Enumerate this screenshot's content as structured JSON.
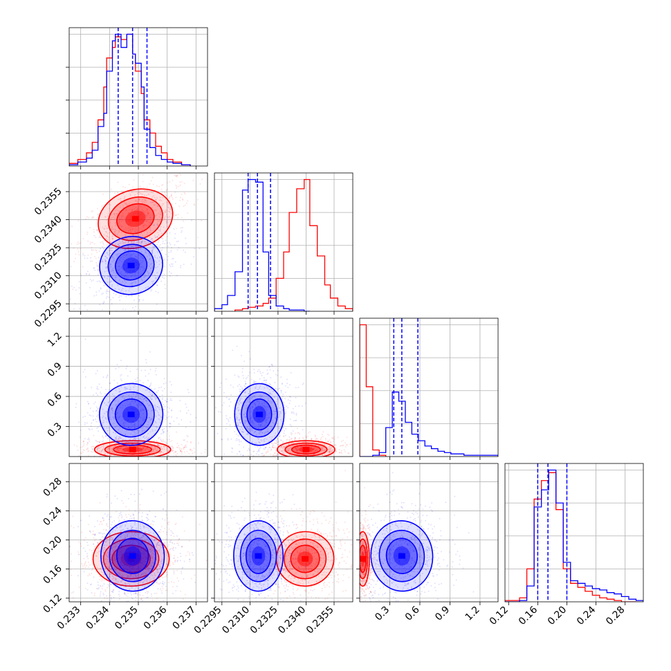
{
  "colors": {
    "series_a": "#ff0000",
    "series_b": "#0000ff",
    "grid": "#b0b0b0"
  },
  "chart_data": [
    {
      "type": "histogram",
      "param_index": 0,
      "xlim": [
        0.2326,
        0.2374
      ],
      "x_ticks": [
        "0.233",
        "0.234",
        "0.235",
        "0.236",
        "0.237"
      ],
      "quantile_lines": [
        0.2343,
        0.2348,
        0.2353
      ],
      "series": [
        {
          "color": "red",
          "bin_edges": [
            0.2326,
            0.2329,
            0.2332,
            0.2334,
            0.2336,
            0.2338,
            0.2339,
            0.2341,
            0.2342,
            0.2344,
            0.2346,
            0.2348,
            0.2349,
            0.2351,
            0.2352,
            0.2354,
            0.2356,
            0.2358,
            0.236,
            0.2362,
            0.2365,
            0.2368
          ],
          "values": [
            0.02,
            0.05,
            0.1,
            0.18,
            0.35,
            0.6,
            0.82,
            0.9,
            0.98,
            0.96,
            1.0,
            0.85,
            0.72,
            0.55,
            0.35,
            0.25,
            0.15,
            0.1,
            0.05,
            0.03,
            0.01
          ]
        },
        {
          "color": "blue",
          "bin_edges": [
            0.2326,
            0.2329,
            0.2332,
            0.2334,
            0.2336,
            0.2338,
            0.2339,
            0.2341,
            0.2342,
            0.2344,
            0.2346,
            0.2348,
            0.2349,
            0.2351,
            0.2352,
            0.2354,
            0.2356,
            0.2358,
            0.236,
            0.2362,
            0.2365,
            0.2368
          ],
          "values": [
            0.01,
            0.03,
            0.06,
            0.12,
            0.3,
            0.4,
            0.72,
            0.95,
            1.0,
            0.9,
            1.0,
            0.85,
            0.78,
            0.6,
            0.28,
            0.14,
            0.08,
            0.05,
            0.03,
            0.02,
            0.01
          ]
        }
      ]
    },
    {
      "type": "histogram",
      "param_index": 1,
      "xlim": [
        0.2291,
        0.2365
      ],
      "x_ticks": [
        "0.2295",
        "0.2310",
        "0.2325",
        "0.2340",
        "0.2355"
      ],
      "quantile_lines": [
        0.2309,
        0.2314,
        0.2321
      ],
      "series": [
        {
          "color": "red",
          "bin_edges": [
            0.2302,
            0.2306,
            0.2309,
            0.2313,
            0.2317,
            0.232,
            0.2324,
            0.2328,
            0.2331,
            0.2335,
            0.2339,
            0.2342,
            0.2346,
            0.235,
            0.2353,
            0.2357,
            0.2361,
            0.2365
          ],
          "values": [
            0.01,
            0.02,
            0.03,
            0.04,
            0.06,
            0.1,
            0.25,
            0.45,
            0.75,
            0.93,
            1.0,
            0.65,
            0.42,
            0.2,
            0.1,
            0.04,
            0.02
          ]
        },
        {
          "color": "blue",
          "bin_edges": [
            0.2291,
            0.2295,
            0.2298,
            0.2302,
            0.2306,
            0.2309,
            0.2313,
            0.2317,
            0.232,
            0.2324,
            0.2328,
            0.2331,
            0.2335,
            0.2339,
            0.2342
          ],
          "values": [
            0.02,
            0.05,
            0.12,
            0.3,
            0.92,
            1.0,
            0.98,
            0.45,
            0.12,
            0.04,
            0.02,
            0.01,
            0.01,
            0.0
          ]
        }
      ]
    },
    {
      "type": "histogram",
      "param_index": 2,
      "xlim": [
        0.0,
        1.38
      ],
      "x_ticks": [
        "0.3",
        "0.6",
        "0.9",
        "1.2"
      ],
      "quantile_lines": [
        0.34,
        0.42,
        0.58
      ],
      "series": [
        {
          "color": "red",
          "bin_edges": [
            0.0,
            0.065,
            0.13,
            0.195,
            0.26
          ],
          "values": [
            1.0,
            0.53,
            0.05,
            0.01
          ]
        },
        {
          "color": "blue",
          "bin_edges": [
            0.0,
            0.065,
            0.13,
            0.195,
            0.26,
            0.325,
            0.39,
            0.455,
            0.52,
            0.585,
            0.65,
            0.715,
            0.78,
            0.845,
            0.91,
            1.04,
            1.17,
            1.38
          ],
          "values": [
            0.0,
            0.0,
            0.01,
            0.03,
            0.22,
            0.49,
            0.42,
            0.26,
            0.17,
            0.12,
            0.08,
            0.06,
            0.04,
            0.03,
            0.02,
            0.01,
            0.01
          ]
        }
      ]
    },
    {
      "type": "histogram",
      "param_index": 3,
      "xlim": [
        0.115,
        0.305
      ],
      "x_ticks": [
        "0.12",
        "0.16",
        "0.20",
        "0.24",
        "0.28"
      ],
      "quantile_lines": [
        0.16,
        0.174,
        0.2
      ],
      "series": [
        {
          "color": "red",
          "bin_edges": [
            0.115,
            0.135,
            0.145,
            0.155,
            0.165,
            0.175,
            0.185,
            0.195,
            0.205,
            0.215,
            0.225,
            0.235,
            0.245,
            0.255,
            0.265,
            0.275,
            0.285,
            0.295
          ],
          "values": [
            0.01,
            0.03,
            0.25,
            0.78,
            0.92,
            0.98,
            0.7,
            0.25,
            0.14,
            0.11,
            0.08,
            0.05,
            0.03,
            0.02,
            0.01,
            0.0,
            0.0
          ]
        },
        {
          "color": "blue",
          "bin_edges": [
            0.115,
            0.135,
            0.145,
            0.155,
            0.165,
            0.175,
            0.185,
            0.195,
            0.205,
            0.215,
            0.225,
            0.235,
            0.245,
            0.255,
            0.265,
            0.275,
            0.285,
            0.295,
            0.305
          ],
          "values": [
            0.0,
            0.01,
            0.12,
            0.72,
            0.85,
            1.0,
            0.75,
            0.3,
            0.16,
            0.14,
            0.12,
            0.1,
            0.09,
            0.07,
            0.06,
            0.04,
            0.02,
            0.01
          ]
        }
      ]
    },
    {
      "type": "scatter_contour",
      "x_param": 0,
      "y_param": 1,
      "xlim": [
        0.2326,
        0.2374
      ],
      "ylim": [
        0.2291,
        0.2365
      ],
      "y_ticks": [
        "0.2295",
        "0.2310",
        "0.2325",
        "0.2340",
        "0.2355"
      ],
      "series": [
        {
          "color": "red",
          "center": [
            0.2349,
            0.23405
          ],
          "sd": [
            0.0006,
            0.0007
          ],
          "rho": 0.55
        },
        {
          "color": "blue",
          "center": [
            0.23475,
            0.23155
          ],
          "sd": [
            0.0005,
            0.0007
          ],
          "rho": 0.4
        }
      ]
    },
    {
      "type": "scatter_contour",
      "x_param": 0,
      "y_param": 2,
      "xlim": [
        0.2326,
        0.2374
      ],
      "ylim": [
        0.0,
        1.38
      ],
      "y_ticks": [
        "0.3",
        "0.6",
        "0.9",
        "1.2"
      ],
      "series": [
        {
          "color": "red",
          "center": [
            0.2348,
            0.07
          ],
          "sd": [
            0.0006,
            0.04
          ],
          "rho": 0.0
        },
        {
          "color": "blue",
          "center": [
            0.23475,
            0.42
          ],
          "sd": [
            0.0005,
            0.14
          ],
          "rho": 0.1
        }
      ]
    },
    {
      "type": "scatter_contour",
      "x_param": 1,
      "y_param": 2,
      "xlim": [
        0.2291,
        0.2365
      ],
      "ylim": [
        0.0,
        1.38
      ],
      "series": [
        {
          "color": "red",
          "center": [
            0.234,
            0.07
          ],
          "sd": [
            0.0007,
            0.04
          ],
          "rho": 0.0
        },
        {
          "color": "blue",
          "center": [
            0.2315,
            0.42
          ],
          "sd": [
            0.0006,
            0.14
          ],
          "rho": 0.0
        }
      ]
    },
    {
      "type": "scatter_contour",
      "x_param": 0,
      "y_param": 3,
      "xlim": [
        0.2326,
        0.2374
      ],
      "ylim": [
        0.115,
        0.305
      ],
      "y_ticks": [
        "0.12",
        "0.16",
        "0.20",
        "0.24",
        "0.28"
      ],
      "series": [
        {
          "color": "red",
          "center": [
            0.23475,
            0.174
          ],
          "sd": [
            0.0006,
            0.017
          ],
          "rho": 0.0
        },
        {
          "color": "blue",
          "center": [
            0.2348,
            0.178
          ],
          "sd": [
            0.0005,
            0.022
          ],
          "rho": 0.05
        }
      ]
    },
    {
      "type": "scatter_contour",
      "x_param": 1,
      "y_param": 3,
      "xlim": [
        0.2291,
        0.2365
      ],
      "ylim": [
        0.115,
        0.305
      ],
      "series": [
        {
          "color": "red",
          "center": [
            0.23395,
            0.174
          ],
          "sd": [
            0.0007,
            0.017
          ],
          "rho": 0.1
        },
        {
          "color": "blue",
          "center": [
            0.23145,
            0.178
          ],
          "sd": [
            0.0006,
            0.022
          ],
          "rho": 0.0
        }
      ]
    },
    {
      "type": "scatter_contour",
      "x_param": 2,
      "y_param": 3,
      "xlim": [
        0.0,
        1.38
      ],
      "ylim": [
        0.115,
        0.305
      ],
      "series": [
        {
          "color": "red",
          "center": [
            0.03,
            0.174
          ],
          "sd": [
            0.03,
            0.017
          ],
          "rho": 0.0
        },
        {
          "color": "blue",
          "center": [
            0.42,
            0.178
          ],
          "sd": [
            0.14,
            0.022
          ],
          "rho": 0.1
        }
      ]
    }
  ]
}
